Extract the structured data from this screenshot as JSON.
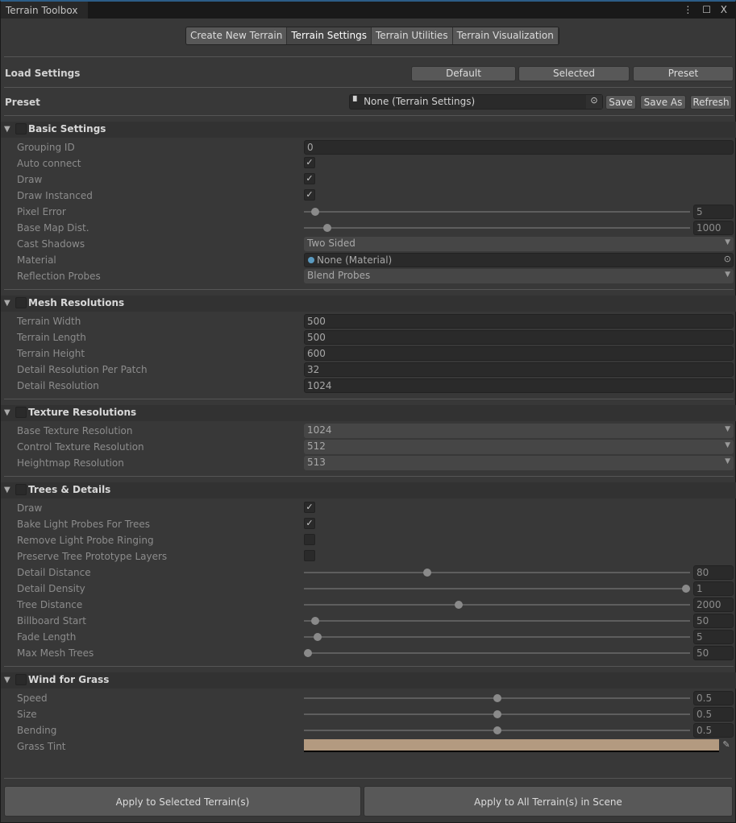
{
  "window": {
    "title": "Terrain Toolbox",
    "controls": "⋮ ☐ X"
  },
  "tabs": [
    {
      "label": "Create New Terrain"
    },
    {
      "label": "Terrain Settings",
      "active": true
    },
    {
      "label": "Terrain Utilities"
    },
    {
      "label": "Terrain Visualization"
    }
  ],
  "load_settings": {
    "label": "Load Settings",
    "default": "Default",
    "selected": "Selected",
    "preset": "Preset"
  },
  "preset": {
    "label": "Preset",
    "value": "None (Terrain Settings)",
    "save": "Save",
    "save_as": "Save As",
    "refresh": "Refresh"
  },
  "sections": [
    {
      "title": "Basic Settings",
      "rows": [
        {
          "label": "Grouping ID",
          "type": "text",
          "value": "0"
        },
        {
          "label": "Auto connect",
          "type": "check",
          "checked": true
        },
        {
          "label": "Draw",
          "type": "check",
          "checked": true
        },
        {
          "label": "Draw Instanced",
          "type": "check",
          "checked": true
        },
        {
          "label": "Pixel Error",
          "type": "slider",
          "value": "5",
          "fraction": 0.03
        },
        {
          "label": "Base Map Dist.",
          "type": "slider",
          "value": "1000",
          "fraction": 0.06
        },
        {
          "label": "Cast Shadows",
          "type": "dropdown",
          "value": "Two Sided"
        },
        {
          "label": "Material",
          "type": "object",
          "value": "None (Material)"
        },
        {
          "label": "Reflection Probes",
          "type": "dropdown",
          "value": "Blend Probes"
        }
      ]
    },
    {
      "title": "Mesh Resolutions",
      "rows": [
        {
          "label": "Terrain Width",
          "type": "text",
          "value": "500"
        },
        {
          "label": "Terrain Length",
          "type": "text",
          "value": "500"
        },
        {
          "label": "Terrain Height",
          "type": "text",
          "value": "600"
        },
        {
          "label": "Detail Resolution Per Patch",
          "type": "text",
          "value": "32"
        },
        {
          "label": "Detail Resolution",
          "type": "text",
          "value": "1024"
        }
      ]
    },
    {
      "title": "Texture Resolutions",
      "rows": [
        {
          "label": "Base Texture Resolution",
          "type": "dropdown",
          "value": "1024"
        },
        {
          "label": "Control Texture Resolution",
          "type": "dropdown",
          "value": "512"
        },
        {
          "label": "Heightmap Resolution",
          "type": "dropdown",
          "value": "513"
        }
      ]
    },
    {
      "title": "Trees & Details",
      "rows": [
        {
          "label": "Draw",
          "type": "check",
          "checked": true
        },
        {
          "label": "Bake Light Probes For Trees",
          "type": "check",
          "checked": true
        },
        {
          "label": "Remove Light Probe Ringing",
          "type": "check",
          "checked": false
        },
        {
          "label": "Preserve Tree Prototype Layers",
          "type": "check",
          "checked": false
        },
        {
          "label": "Detail Distance",
          "type": "slider",
          "value": "80",
          "fraction": 0.32
        },
        {
          "label": "Detail Density",
          "type": "slider",
          "value": "1",
          "fraction": 1.0
        },
        {
          "label": "Tree Distance",
          "type": "slider",
          "value": "2000",
          "fraction": 0.4
        },
        {
          "label": "Billboard Start",
          "type": "slider",
          "value": "50",
          "fraction": 0.03
        },
        {
          "label": "Fade Length",
          "type": "slider",
          "value": "5",
          "fraction": 0.035
        },
        {
          "label": "Max Mesh Trees",
          "type": "slider",
          "value": "50",
          "fraction": 0.01
        }
      ]
    },
    {
      "title": "Wind for Grass",
      "rows": [
        {
          "label": "Speed",
          "type": "slider",
          "value": "0.5",
          "fraction": 0.5
        },
        {
          "label": "Size",
          "type": "slider",
          "value": "0.5",
          "fraction": 0.5
        },
        {
          "label": "Bending",
          "type": "slider",
          "value": "0.5",
          "fraction": 0.5
        },
        {
          "label": "Grass Tint",
          "type": "color",
          "color": "#b39a80"
        }
      ]
    }
  ],
  "apply_selected": "Apply to Selected Terrain(s)",
  "apply_all": "Apply to All Terrain(s) in Scene"
}
